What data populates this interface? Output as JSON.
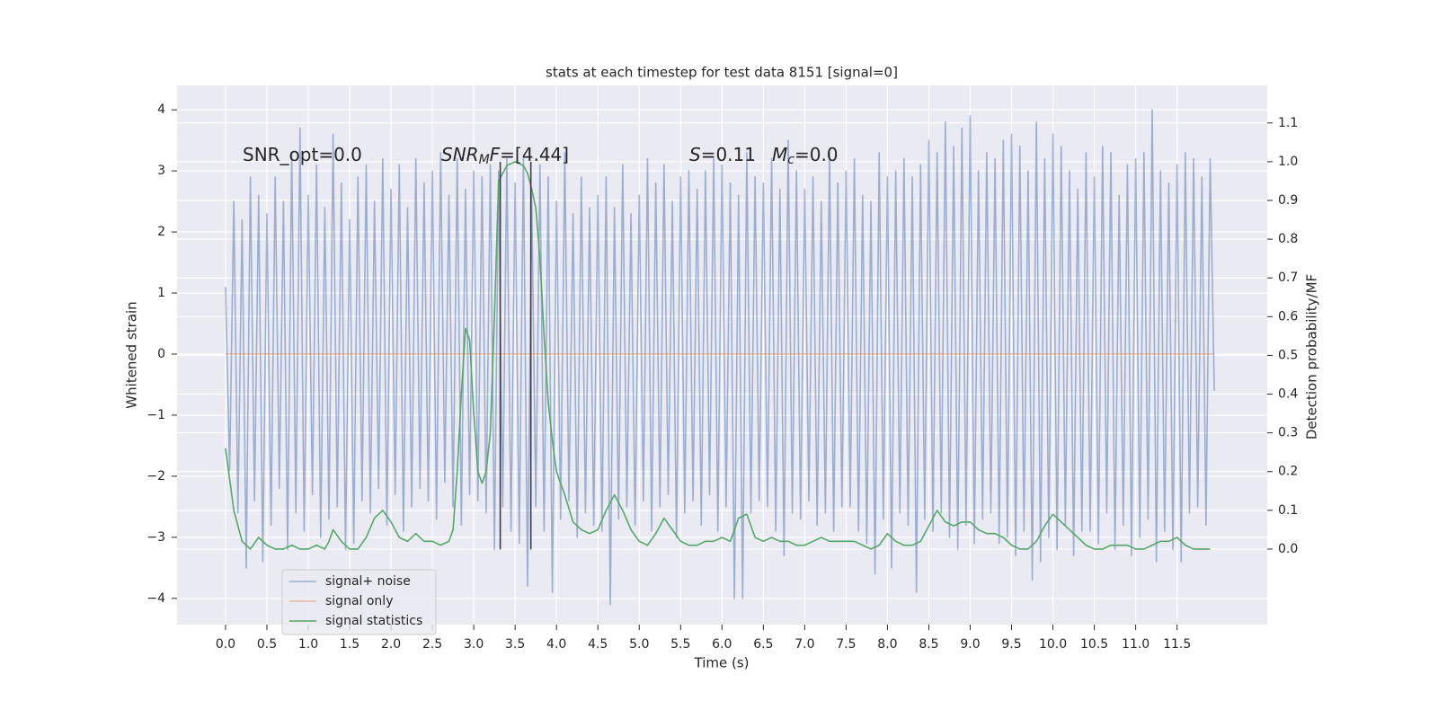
{
  "chart_data": {
    "type": "line",
    "title": "stats at each timestep for test data 8151 [signal=0]",
    "x_label": "Time (s)",
    "y_label": "Whitened strain",
    "y2_label": "Detection probability/MF",
    "grid": true,
    "legend": "lower left",
    "xlim": [
      -0.586,
      12.59
    ],
    "ylim": [
      -4.43,
      4.4
    ],
    "y2lim": [
      -0.195,
      1.197
    ],
    "xticks": [
      {
        "value": 0,
        "label": "0.0"
      },
      0.5,
      {
        "value": 1,
        "label": "1.0"
      },
      1.5,
      {
        "value": 2,
        "label": "2.0"
      },
      2.5,
      {
        "value": 3,
        "label": "3.0"
      },
      3.5,
      {
        "value": 4,
        "label": "4.0"
      },
      4.5,
      {
        "value": 5,
        "label": "5.0"
      },
      5.5,
      {
        "value": 6,
        "label": "6.0"
      },
      6.5,
      {
        "value": 7,
        "label": "7.0"
      },
      7.5,
      {
        "value": 8,
        "label": "8.0"
      },
      8.5,
      {
        "value": 9,
        "label": "9.0"
      },
      9.5,
      {
        "value": 10,
        "label": "10.0"
      },
      10.5,
      {
        "value": 11,
        "label": "11.0"
      },
      11.5
    ],
    "yticks": [
      {
        "value": -4,
        "label": "−4"
      },
      {
        "value": -3,
        "label": "−3"
      },
      {
        "value": -2,
        "label": "−2"
      },
      {
        "value": -1,
        "label": "−1"
      },
      0,
      1,
      2,
      3,
      4
    ],
    "y2ticks": [
      {
        "value": 0,
        "label": "0.0"
      },
      0.1,
      0.2,
      0.3,
      0.4,
      0.5,
      0.6,
      0.7,
      0.8,
      0.9,
      {
        "value": 1,
        "label": "1.0"
      },
      1.1
    ],
    "annotations": [
      [
        {
          "text": "SNR_opt=0.0"
        }
      ],
      [
        {
          "text": "SNR",
          "style": "italic"
        },
        {
          "text": "M",
          "style": "italic-sub"
        },
        {
          "text": "F",
          "style": "italic"
        },
        {
          "text": "=[4.44]"
        }
      ],
      [
        {
          "text": "S",
          "style": "italic"
        },
        {
          "text": "=0.11"
        },
        {
          "text": "M",
          "style": "italic"
        },
        {
          "text": "c",
          "style": "italic-sub"
        },
        {
          "text": "=0.0"
        }
      ]
    ],
    "vlines": [
      {
        "x": 3.32,
        "ymin": -3.2,
        "ymax": 3.15,
        "color": "#3b3b4a"
      },
      {
        "x": 3.69,
        "ymin": -3.2,
        "ymax": 3.15,
        "color": "#3b3b4a"
      }
    ],
    "series": [
      {
        "name": "signal+ noise",
        "color": "#4c72b0",
        "opacity": 0.5,
        "x": [
          0,
          0.05,
          0.1,
          0.15,
          0.2,
          0.25,
          0.3,
          0.35,
          0.4,
          0.45,
          0.5,
          0.55,
          0.6,
          0.65,
          0.7,
          0.75,
          0.8,
          0.85,
          0.9,
          0.95,
          1,
          1.05,
          1.1,
          1.15,
          1.2,
          1.25,
          1.3,
          1.35,
          1.4,
          1.45,
          1.5,
          1.55,
          1.6,
          1.65,
          1.7,
          1.75,
          1.8,
          1.85,
          1.9,
          1.95,
          2,
          2.05,
          2.1,
          2.15,
          2.2,
          2.25,
          2.3,
          2.35,
          2.4,
          2.45,
          2.5,
          2.55,
          2.6,
          2.65,
          2.7,
          2.75,
          2.8,
          2.85,
          2.9,
          2.95,
          3,
          3.05,
          3.1,
          3.15,
          3.2,
          3.25,
          3.3,
          3.35,
          3.4,
          3.45,
          3.5,
          3.55,
          3.6,
          3.65,
          3.7,
          3.75,
          3.8,
          3.85,
          3.9,
          3.95,
          4,
          4.05,
          4.1,
          4.15,
          4.2,
          4.25,
          4.3,
          4.35,
          4.4,
          4.45,
          4.5,
          4.55,
          4.6,
          4.65,
          4.7,
          4.75,
          4.8,
          4.85,
          4.9,
          4.95,
          5,
          5.05,
          5.1,
          5.15,
          5.2,
          5.25,
          5.3,
          5.35,
          5.4,
          5.45,
          5.5,
          5.55,
          5.6,
          5.65,
          5.7,
          5.75,
          5.8,
          5.85,
          5.9,
          5.95,
          6,
          6.05,
          6.1,
          6.15,
          6.2,
          6.25,
          6.3,
          6.35,
          6.4,
          6.45,
          6.5,
          6.55,
          6.6,
          6.65,
          6.7,
          6.75,
          6.8,
          6.85,
          6.9,
          6.95,
          7,
          7.05,
          7.1,
          7.15,
          7.2,
          7.25,
          7.3,
          7.35,
          7.4,
          7.45,
          7.5,
          7.55,
          7.6,
          7.65,
          7.7,
          7.75,
          7.8,
          7.85,
          7.9,
          7.95,
          8,
          8.05,
          8.1,
          8.15,
          8.2,
          8.25,
          8.3,
          8.35,
          8.4,
          8.45,
          8.5,
          8.55,
          8.6,
          8.65,
          8.7,
          8.75,
          8.8,
          8.85,
          8.9,
          8.95,
          9,
          9.05,
          9.1,
          9.15,
          9.2,
          9.25,
          9.3,
          9.35,
          9.4,
          9.45,
          9.5,
          9.55,
          9.6,
          9.65,
          9.7,
          9.75,
          9.8,
          9.85,
          9.9,
          9.95,
          10,
          10.05,
          10.1,
          10.15,
          10.2,
          10.25,
          10.3,
          10.35,
          10.4,
          10.45,
          10.5,
          10.55,
          10.6,
          10.65,
          10.7,
          10.75,
          10.8,
          10.85,
          10.9,
          10.95,
          11,
          11.05,
          11.1,
          11.15,
          11.2,
          11.25,
          11.3,
          11.35,
          11.4,
          11.45,
          11.5,
          11.55,
          11.6,
          11.65,
          11.7,
          11.75,
          11.8,
          11.85,
          11.9,
          11.95
        ],
        "values": [
          1.1,
          -1.9,
          2.5,
          -2.6,
          2.2,
          -3.5,
          2.9,
          -2.4,
          2.6,
          -3.4,
          2.3,
          -2.8,
          2.9,
          -2.2,
          2.5,
          -3.2,
          3.3,
          -2.6,
          3.7,
          -2.9,
          2.6,
          -2.3,
          3.1,
          -3.0,
          2.4,
          -2.7,
          3.6,
          -2.5,
          2.8,
          -3.2,
          2.2,
          -3.1,
          2.9,
          -2.4,
          3.1,
          -2.6,
          2.5,
          -2.2,
          3.2,
          -2.8,
          2.7,
          -2.3,
          3.1,
          -2.9,
          2.4,
          -2.5,
          3.2,
          -2.2,
          2.8,
          -2.4,
          3.0,
          -2.7,
          3.3,
          -2.1,
          2.6,
          -2.5,
          3.2,
          -2.8,
          2.7,
          -2.3,
          3.0,
          -2.4,
          2.9,
          -2.6,
          3.1,
          -3.2,
          3.0,
          -2.5,
          3.2,
          -2.9,
          2.8,
          -3.1,
          3.2,
          -3.8,
          2.6,
          -2.5,
          3.1,
          -2.9,
          2.9,
          -3.9,
          2.5,
          -2.7,
          3.3,
          -2.4,
          2.3,
          -3.0,
          2.9,
          -2.6,
          2.4,
          -2.8,
          2.6,
          -2.9,
          2.9,
          -4.1,
          2.4,
          -2.7,
          3.1,
          -2.5,
          2.3,
          -2.8,
          2.6,
          -2.4,
          3.2,
          -2.9,
          2.8,
          -2.5,
          3.1,
          -2.3,
          2.5,
          -3.0,
          2.9,
          -2.6,
          3.0,
          -2.4,
          2.7,
          -2.8,
          3.0,
          -2.3,
          3.2,
          -2.9,
          3.1,
          -2.5,
          2.8,
          -4.0,
          2.6,
          -4.0,
          3.3,
          -2.6,
          2.9,
          -2.4,
          2.8,
          -2.5,
          3.2,
          -2.9,
          2.7,
          -3.3,
          3.5,
          -2.6,
          3.0,
          -2.7,
          2.7,
          -2.4,
          2.9,
          -2.8,
          2.5,
          -2.6,
          3.3,
          -2.9,
          2.8,
          -2.5,
          3.0,
          -2.5,
          3.2,
          -2.9,
          2.6,
          -3.1,
          2.5,
          -3.6,
          3.3,
          -2.7,
          2.9,
          -3.5,
          3.0,
          -2.6,
          3.2,
          -2.8,
          2.9,
          -3.9,
          3.1,
          -2.7,
          3.5,
          -2.9,
          3.3,
          -2.6,
          3.8,
          -3.0,
          3.4,
          -3.2,
          3.7,
          -2.8,
          3.9,
          -3.1,
          3.0,
          -2.7,
          3.3,
          -2.6,
          3.2,
          -3.1,
          3.5,
          -3.0,
          3.6,
          -3.3,
          3.4,
          -2.9,
          3.0,
          -3.7,
          3.8,
          -3.4,
          3.2,
          -3.0,
          3.6,
          -3.2,
          3.4,
          -2.8,
          3.0,
          -3.3,
          2.7,
          -2.9,
          3.3,
          -2.9,
          2.9,
          -3.1,
          3.4,
          -2.6,
          3.3,
          -3.2,
          2.6,
          -2.8,
          3.1,
          -3.3,
          3.2,
          -3.0,
          3.3,
          -2.7,
          4.0,
          -3.4,
          3.0,
          -2.9,
          2.8,
          -3.2,
          3.1,
          -3.4,
          3.3,
          -2.6,
          3.2,
          -2.5,
          2.9,
          -2.8,
          3.2,
          -0.6
        ]
      },
      {
        "name": "signal only",
        "color": "#dd8452",
        "opacity": 0.5,
        "x": [
          0,
          11.95
        ],
        "values": [
          0,
          0
        ]
      },
      {
        "name": "signal statistics",
        "color": "#55a868",
        "opacity": 1,
        "axis": "y2",
        "x": [
          0,
          0.1,
          0.2,
          0.3,
          0.4,
          0.5,
          0.6,
          0.7,
          0.8,
          0.9,
          1,
          1.1,
          1.2,
          1.25,
          1.3,
          1.4,
          1.5,
          1.6,
          1.7,
          1.8,
          1.9,
          2,
          2.1,
          2.2,
          2.3,
          2.4,
          2.5,
          2.6,
          2.7,
          2.75,
          2.8,
          2.85,
          2.9,
          2.95,
          3,
          3.05,
          3.1,
          3.15,
          3.2,
          3.25,
          3.3,
          3.35,
          3.4,
          3.5,
          3.6,
          3.65,
          3.7,
          3.75,
          3.8,
          3.85,
          3.9,
          3.95,
          4,
          4.1,
          4.2,
          4.3,
          4.4,
          4.5,
          4.6,
          4.7,
          4.8,
          4.9,
          5,
          5.1,
          5.2,
          5.3,
          5.4,
          5.5,
          5.6,
          5.7,
          5.8,
          5.9,
          6,
          6.1,
          6.2,
          6.3,
          6.4,
          6.5,
          6.6,
          6.7,
          6.8,
          6.9,
          7,
          7.1,
          7.2,
          7.3,
          7.4,
          7.5,
          7.6,
          7.7,
          7.8,
          7.9,
          8,
          8.1,
          8.2,
          8.3,
          8.4,
          8.5,
          8.6,
          8.7,
          8.8,
          8.9,
          9,
          9.1,
          9.2,
          9.3,
          9.4,
          9.5,
          9.6,
          9.7,
          9.8,
          9.9,
          10,
          10.1,
          10.2,
          10.3,
          10.4,
          10.5,
          10.6,
          10.7,
          10.8,
          10.9,
          11,
          11.1,
          11.2,
          11.3,
          11.4,
          11.5,
          11.6,
          11.7,
          11.8,
          11.9
        ],
        "values": [
          0.26,
          0.1,
          0.02,
          0.0,
          0.03,
          0.01,
          0.0,
          0.0,
          0.01,
          0.0,
          0.0,
          0.01,
          0.0,
          0.02,
          0.05,
          0.02,
          0.0,
          0.0,
          0.03,
          0.08,
          0.1,
          0.07,
          0.03,
          0.02,
          0.04,
          0.02,
          0.02,
          0.01,
          0.02,
          0.05,
          0.2,
          0.4,
          0.57,
          0.54,
          0.35,
          0.2,
          0.17,
          0.2,
          0.3,
          0.6,
          0.95,
          0.97,
          0.99,
          1.0,
          0.99,
          0.97,
          0.93,
          0.88,
          0.75,
          0.55,
          0.38,
          0.28,
          0.2,
          0.14,
          0.07,
          0.05,
          0.04,
          0.05,
          0.1,
          0.14,
          0.1,
          0.05,
          0.02,
          0.01,
          0.04,
          0.08,
          0.05,
          0.02,
          0.01,
          0.01,
          0.02,
          0.02,
          0.03,
          0.02,
          0.08,
          0.09,
          0.03,
          0.02,
          0.03,
          0.02,
          0.02,
          0.01,
          0.01,
          0.02,
          0.03,
          0.02,
          0.02,
          0.02,
          0.02,
          0.01,
          0.0,
          0.01,
          0.04,
          0.02,
          0.01,
          0.01,
          0.02,
          0.06,
          0.1,
          0.07,
          0.06,
          0.07,
          0.07,
          0.05,
          0.04,
          0.04,
          0.03,
          0.01,
          0.0,
          0.0,
          0.02,
          0.06,
          0.09,
          0.07,
          0.05,
          0.03,
          0.01,
          0.0,
          0.0,
          0.01,
          0.01,
          0.01,
          0.0,
          0.0,
          0.01,
          0.02,
          0.02,
          0.03,
          0.01,
          0.0,
          0.0,
          0.0
        ]
      }
    ]
  }
}
